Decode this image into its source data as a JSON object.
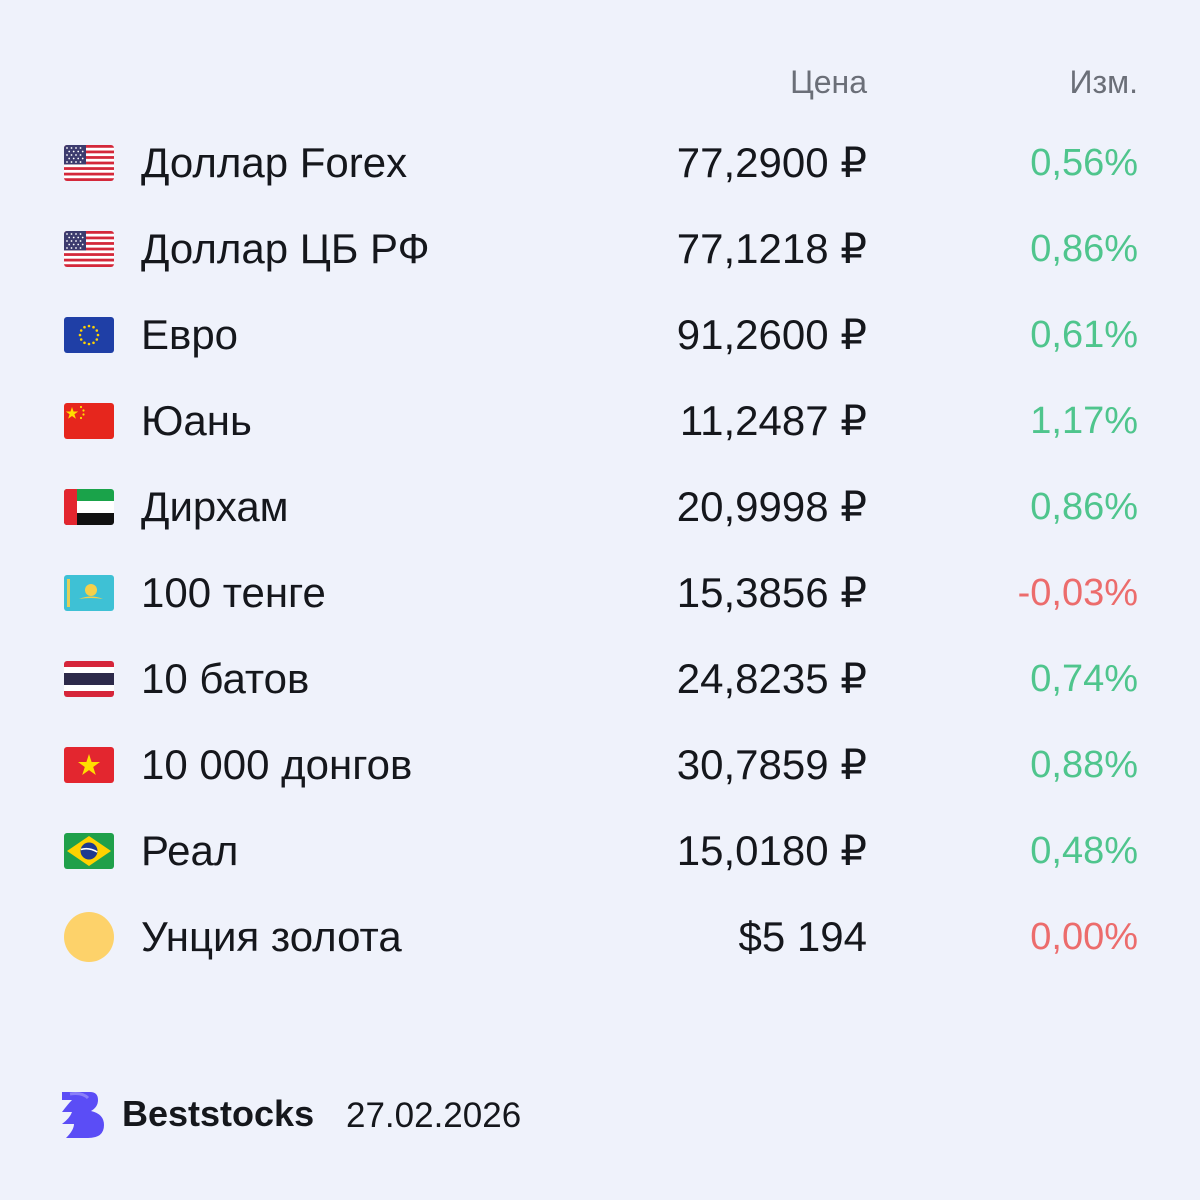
{
  "header": {
    "price_label": "Цена",
    "change_label": "Изм."
  },
  "rows": [
    {
      "flag": "us-flag-icon",
      "name": "Доллар Forex",
      "price": "77,2900 ₽",
      "change": "0,56%",
      "trend": "positive"
    },
    {
      "flag": "us-flag-icon",
      "name": "Доллар ЦБ РФ",
      "price": "77,1218 ₽",
      "change": "0,86%",
      "trend": "positive"
    },
    {
      "flag": "eu-flag-icon",
      "name": "Евро",
      "price": "91,2600 ₽",
      "change": "0,61%",
      "trend": "positive"
    },
    {
      "flag": "cn-flag-icon",
      "name": "Юань",
      "price": "11,2487 ₽",
      "change": "1,17%",
      "trend": "positive"
    },
    {
      "flag": "ae-flag-icon",
      "name": "Дирхам",
      "price": "20,9998 ₽",
      "change": "0,86%",
      "trend": "positive"
    },
    {
      "flag": "kz-flag-icon",
      "name": "100 тенге",
      "price": "15,3856 ₽",
      "change": "-0,03%",
      "trend": "negative"
    },
    {
      "flag": "th-flag-icon",
      "name": "10 батов",
      "price": "24,8235 ₽",
      "change": "0,74%",
      "trend": "positive"
    },
    {
      "flag": "vn-flag-icon",
      "name": "10 000 донгов",
      "price": "30,7859 ₽",
      "change": "0,88%",
      "trend": "positive"
    },
    {
      "flag": "br-flag-icon",
      "name": "Реал",
      "price": "15,0180 ₽",
      "change": "0,48%",
      "trend": "positive"
    },
    {
      "flag": "gold-coin-icon",
      "name": "Унция золота",
      "price": "$5 194",
      "change": "0,00%",
      "trend": "negative"
    }
  ],
  "footer": {
    "brand": "Beststocks",
    "date": "27.02.2026",
    "logo_icon": "beststocks-logo-icon"
  },
  "colors": {
    "background": "#eff2fb",
    "positive": "#4fc58d",
    "negative": "#ec6c6c",
    "header_text": "#6b6f78",
    "brand_accent": "#5b4df6",
    "gold_coin": "#fdd26a"
  }
}
